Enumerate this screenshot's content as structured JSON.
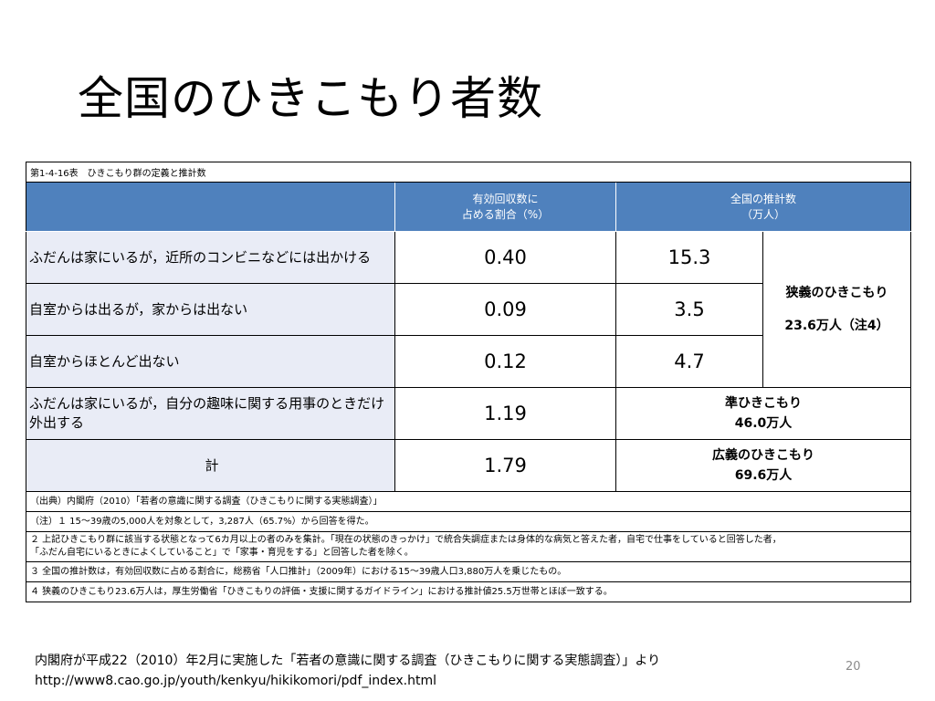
{
  "title": "全国のひきこもり者数",
  "table": {
    "caption": "第1-4-16表　ひきこもり群の定義と推計数",
    "headers": {
      "ratio_line1": "有効回収数に",
      "ratio_line2": "占める割合（%）",
      "estimate_line1": "全国の推計数",
      "estimate_line2": "（万人）"
    },
    "rows": [
      {
        "label": "ふだんは家にいるが，近所のコンビニなどには出かける",
        "ratio": "0.40",
        "estimate": "15.3"
      },
      {
        "label": "自室からは出るが，家からは出ない",
        "ratio": "0.09",
        "estimate": "3.5"
      },
      {
        "label": "自室からほとんど出ない",
        "ratio": "0.12",
        "estimate": "4.7"
      },
      {
        "label": "ふだんは家にいるが，自分の趣味に関する用事のときだけ外出する",
        "ratio": "1.19"
      },
      {
        "label": "計",
        "ratio": "1.79"
      }
    ],
    "groups": {
      "narrow_name": "狭義のひきこもり",
      "narrow_value": "23.6万人（注4）",
      "quasi_name": "準ひきこもり",
      "quasi_value": "46.0万人",
      "broad_name": "広義のひきこもり",
      "broad_value": "69.6万人"
    },
    "notes": {
      "source": "（出典）内閣府（2010）「若者の意識に関する調査（ひきこもりに関する実態調査）」",
      "note1": "（注）１ 15〜39歳の5,000人を対象として，3,287人（65.7%）から回答を得た。",
      "note2_line1": "２ 上記ひきこもり群に該当する状態となって6カ月以上の者のみを集計。「現在の状態のきっかけ」で統合失調症または身体的な病気と答えた者，自宅で仕事をしていると回答した者，",
      "note2_line2": "「ふだん自宅にいるときによくしていること」で「家事・育児をする」と回答した者を除く。",
      "note3": "３ 全国の推計数は，有効回収数に占める割合に，総務省「人口推計」（2009年）における15〜39歳人口3,880万人を乗じたもの。",
      "note4": "４ 狭義のひきこもり23.6万人は，厚生労働省「ひきこもりの評価・支援に関するガイドライン」における推計値25.5万世帯とほぼ一致する。"
    }
  },
  "footer": {
    "line1": "内閣府が平成22（2010）年2月に実施した「若者の意識に関する調査（ひきこもりに関する実態調査）」より",
    "line2": "http://www8.cao.go.jp/youth/kenkyu/hikikomori/pdf_index.html"
  },
  "page_number": "20"
}
